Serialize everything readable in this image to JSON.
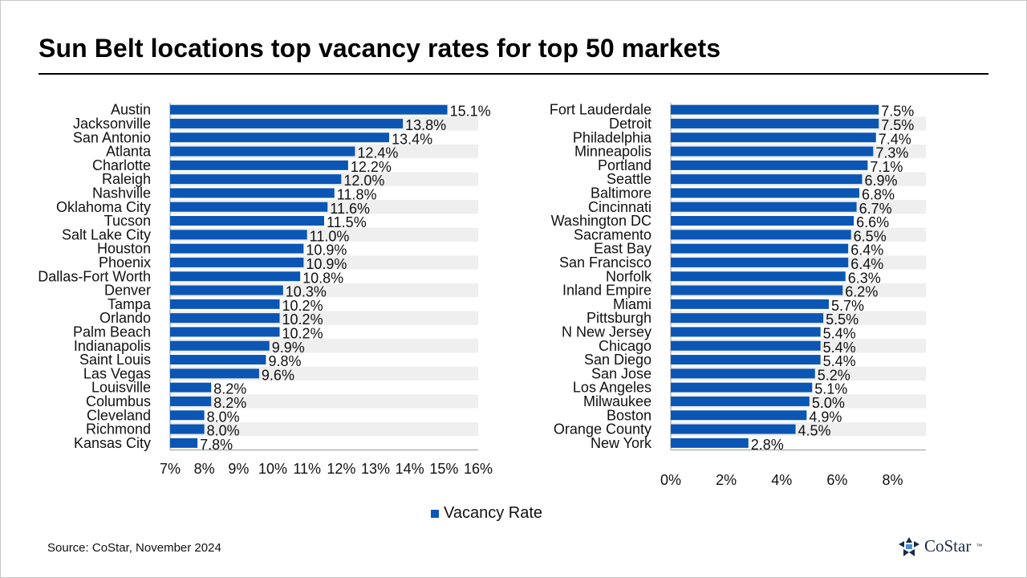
{
  "title": "Sun Belt locations top vacancy rates for top 50 markets",
  "legend_label": "Vacancy Rate",
  "source": "Source: CoStar, November 2024",
  "logo_text": "CoStar",
  "logo_tm": "™",
  "colors": {
    "bar": "#0b56b4",
    "band": "#efefef",
    "axis": "#999999",
    "text": "#111111"
  },
  "chart_data": [
    {
      "type": "bar",
      "orientation": "horizontal",
      "categories": [
        "Austin",
        "Jacksonville",
        "San Antonio",
        "Atlanta",
        "Charlotte",
        "Raleigh",
        "Nashville",
        "Oklahoma City",
        "Tucson",
        "Salt Lake City",
        "Houston",
        "Phoenix",
        "Dallas-Fort Worth",
        "Denver",
        "Tampa",
        "Orlando",
        "Palm Beach",
        "Indianapolis",
        "Saint Louis",
        "Las Vegas",
        "Louisville",
        "Columbus",
        "Cleveland",
        "Richmond",
        "Kansas City"
      ],
      "series": [
        {
          "name": "Vacancy Rate",
          "values": [
            15.1,
            13.8,
            13.4,
            12.4,
            12.2,
            12.0,
            11.8,
            11.6,
            11.5,
            11.0,
            10.9,
            10.9,
            10.8,
            10.3,
            10.2,
            10.2,
            10.2,
            9.9,
            9.8,
            9.6,
            8.2,
            8.2,
            8.0,
            8.0,
            7.8
          ]
        }
      ],
      "data_labels": [
        "15.1%",
        "13.8%",
        "13.4%",
        "12.4%",
        "12.2%",
        "12.0%",
        "11.8%",
        "11.6%",
        "11.5%",
        "11.0%",
        "10.9%",
        "10.9%",
        "10.8%",
        "10.3%",
        "10.2%",
        "10.2%",
        "10.2%",
        "9.9%",
        "9.8%",
        "9.6%",
        "8.2%",
        "8.2%",
        "8.0%",
        "8.0%",
        "7.8%"
      ],
      "xlim": [
        7,
        16
      ],
      "x_ticks": [
        7,
        8,
        9,
        10,
        11,
        12,
        13,
        14,
        15,
        16
      ],
      "x_tick_labels": [
        "7%",
        "8%",
        "9%",
        "10%",
        "11%",
        "12%",
        "13%",
        "14%",
        "15%",
        "16%"
      ],
      "grid": false
    },
    {
      "type": "bar",
      "orientation": "horizontal",
      "categories": [
        "Fort Lauderdale",
        "Detroit",
        "Philadelphia",
        "Minneapolis",
        "Portland",
        "Seattle",
        "Baltimore",
        "Cincinnati",
        "Washington DC",
        "Sacramento",
        "East Bay",
        "San Francisco",
        "Norfolk",
        "Inland Empire",
        "Miami",
        "Pittsburgh",
        "N New Jersey",
        "Chicago",
        "San Diego",
        "San Jose",
        "Los Angeles",
        "Milwaukee",
        "Boston",
        "Orange County",
        "New York"
      ],
      "series": [
        {
          "name": "Vacancy Rate",
          "values": [
            7.5,
            7.5,
            7.4,
            7.3,
            7.1,
            6.9,
            6.8,
            6.7,
            6.6,
            6.5,
            6.4,
            6.4,
            6.3,
            6.2,
            5.7,
            5.5,
            5.4,
            5.4,
            5.4,
            5.2,
            5.1,
            5.0,
            4.9,
            4.5,
            2.8
          ]
        }
      ],
      "data_labels": [
        "7.5%",
        "7.5%",
        "7.4%",
        "7.3%",
        "7.1%",
        "6.9%",
        "6.8%",
        "6.7%",
        "6.6%",
        "6.5%",
        "6.4%",
        "6.4%",
        "6.3%",
        "6.2%",
        "5.7%",
        "5.5%",
        "5.4%",
        "5.4%",
        "5.4%",
        "5.2%",
        "5.1%",
        "5.0%",
        "4.9%",
        "4.5%",
        "2.8%"
      ],
      "xlim": [
        0,
        9.2
      ],
      "x_ticks": [
        0,
        2,
        4,
        6,
        8
      ],
      "x_tick_labels": [
        "0%",
        "2%",
        "4%",
        "6%",
        "8%"
      ],
      "grid": false
    }
  ]
}
